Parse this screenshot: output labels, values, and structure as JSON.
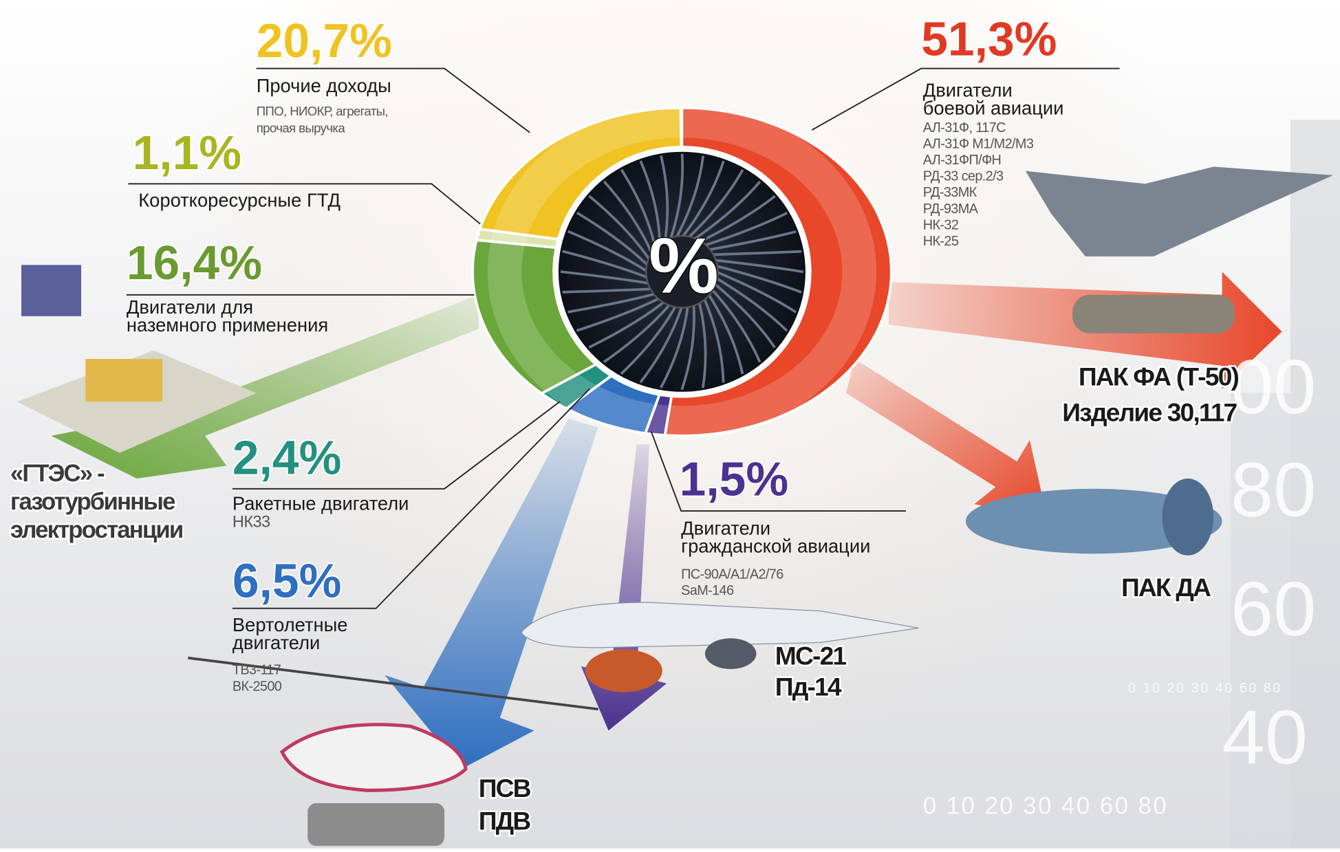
{
  "chart_data": {
    "type": "pie",
    "center_label": "%",
    "values": [
      51.3,
      1.5,
      6.5,
      2.4,
      16.4,
      1.1,
      20.7
    ],
    "value_labels": [
      "51,3%",
      "1,5%",
      "6,5%",
      "2,4%",
      "16,4%",
      "1,1%",
      "20,7%"
    ],
    "colors": [
      "#e8472a",
      "#4b3290",
      "#2f6fc0",
      "#23917f",
      "#6aa63a",
      "#dfe3b0",
      "#f0c222"
    ],
    "categories": [
      [
        "Двигатели",
        "боевой авиации"
      ],
      [
        "Двигатели",
        "гражданской авиации"
      ],
      [
        "Вертолетные",
        "двигатели"
      ],
      [
        "Ракетные двигатели"
      ],
      [
        "Двигатели для",
        "наземного применения"
      ],
      [
        "Короткоресурсные ГТД"
      ],
      [
        "Прочие доходы"
      ]
    ],
    "details": [
      [
        "АЛ-31Ф, 117С",
        "АЛ-31Ф М1/М2/М3",
        "АЛ-31ФП/ФН",
        "РД-33 сер.2/3",
        "РД-33МК",
        "РД-93МА",
        "НК-32",
        "НК-25"
      ],
      [
        "ПС-90А/А1/А2/76",
        "SaM-146"
      ],
      [
        "ТВ3-117",
        "ВК-2500"
      ],
      [
        "НК33"
      ],
      [],
      [],
      [
        "ППО, НИОКР, агрегаты,",
        "прочая выручка"
      ]
    ],
    "annotations": [
      [
        "ПАК ФА (Т-50)",
        "Изделие 30,117"
      ],
      [
        "ПАК ДА"
      ],
      [
        "МС-21",
        "Пд-14"
      ],
      [
        "ПСВ",
        "ПДВ"
      ],
      [
        "«ГТЭС» -",
        "газотурбинные",
        "электростанции"
      ]
    ],
    "background_texts": [
      "0 10 20 30 40 60 80",
      "0 10 20 30 40 60 80",
      "00",
      "80",
      "60",
      "40"
    ]
  }
}
